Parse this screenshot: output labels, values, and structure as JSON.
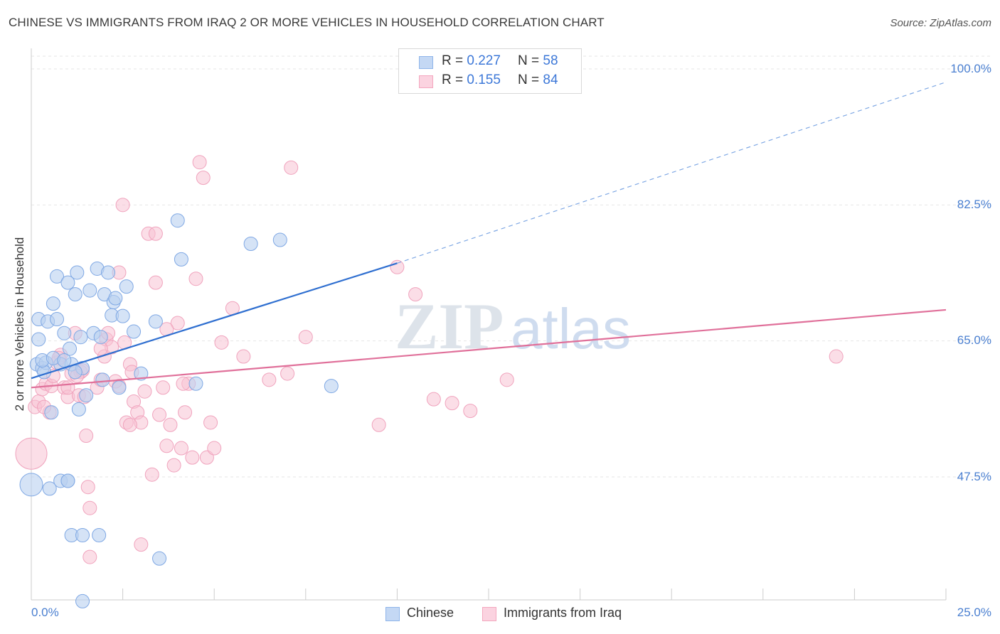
{
  "title": "CHINESE VS IMMIGRANTS FROM IRAQ 2 OR MORE VEHICLES IN HOUSEHOLD CORRELATION CHART",
  "source": "Source: ZipAtlas.com",
  "watermark": {
    "zip": "ZIP",
    "atlas": "atlas"
  },
  "legend_top": [
    {
      "r_label": "R =",
      "r_value": "0.227",
      "n_label": "N =",
      "n_value": "58"
    },
    {
      "r_label": "R =",
      "r_value": "0.155",
      "n_label": "N =",
      "n_value": "84"
    }
  ],
  "chart_data": {
    "type": "scatter",
    "title": "CHINESE VS IMMIGRANTS FROM IRAQ 2 OR MORE VEHICLES IN HOUSEHOLD CORRELATION CHART",
    "xlabel": "",
    "ylabel": "2 or more Vehicles in Household",
    "xlim": [
      0,
      25
    ],
    "ylim": [
      28,
      100
    ],
    "x_tick_labels": [
      "0.0%",
      "25.0%"
    ],
    "y_ticks": [
      47.5,
      65.0,
      82.5,
      100.0
    ],
    "y_tick_labels": [
      "47.5%",
      "65.0%",
      "82.5%",
      "100.0%"
    ],
    "grid": true,
    "colors": {
      "Chinese": "#8fb5ea",
      "Immigrants from Iraq": "#f4a7bf",
      "Chinese_line": "#2f6fd0",
      "Iraq_line": "#e0709a"
    },
    "series": [
      {
        "name": "Chinese",
        "r": 0.227,
        "n": 58,
        "trend": {
          "x0": 0.0,
          "y0": 60.2,
          "x1": 10.0,
          "y1": 75.0,
          "dash_to_x": 25.0,
          "dash_to_y": 98.3
        },
        "points": [
          [
            0.15,
            62.0
          ],
          [
            0.2,
            65.2
          ],
          [
            0.2,
            67.8
          ],
          [
            0.3,
            61.5
          ],
          [
            0.4,
            62.2
          ],
          [
            0.45,
            67.5
          ],
          [
            0.55,
            55.8
          ],
          [
            0.5,
            46.0
          ],
          [
            0.35,
            61.0
          ],
          [
            0.6,
            69.8
          ],
          [
            0.7,
            73.3
          ],
          [
            0.7,
            67.8
          ],
          [
            0.8,
            62.0
          ],
          [
            0.9,
            66.0
          ],
          [
            1.0,
            72.5
          ],
          [
            1.05,
            64.0
          ],
          [
            1.1,
            62.0
          ],
          [
            1.2,
            71.0
          ],
          [
            1.25,
            73.8
          ],
          [
            1.3,
            56.2
          ],
          [
            1.35,
            65.5
          ],
          [
            1.4,
            61.5
          ],
          [
            1.5,
            58.0
          ],
          [
            1.6,
            71.5
          ],
          [
            1.7,
            66.0
          ],
          [
            1.8,
            74.3
          ],
          [
            1.9,
            65.5
          ],
          [
            1.95,
            60.0
          ],
          [
            2.0,
            71.0
          ],
          [
            2.1,
            73.8
          ],
          [
            2.2,
            68.3
          ],
          [
            2.25,
            70.0
          ],
          [
            2.3,
            70.5
          ],
          [
            2.4,
            59.0
          ],
          [
            2.5,
            68.2
          ],
          [
            2.6,
            72.0
          ],
          [
            2.8,
            66.2
          ],
          [
            3.0,
            60.8
          ],
          [
            3.4,
            67.5
          ],
          [
            4.0,
            80.5
          ],
          [
            4.1,
            75.5
          ],
          [
            4.5,
            59.5
          ],
          [
            6.0,
            77.5
          ],
          [
            6.8,
            78.0
          ],
          [
            8.2,
            59.2
          ],
          [
            0.0,
            46.5
          ],
          [
            0.8,
            47.0
          ],
          [
            1.0,
            47.0
          ],
          [
            1.1,
            40.0
          ],
          [
            1.4,
            40.0
          ],
          [
            1.85,
            40.0
          ],
          [
            3.5,
            37.0
          ],
          [
            1.4,
            31.5
          ],
          [
            0.3,
            62.5
          ],
          [
            0.6,
            62.8
          ],
          [
            1.0,
            47.0
          ],
          [
            0.9,
            62.5
          ],
          [
            1.2,
            61.0
          ]
        ]
      },
      {
        "name": "Immigrants from Iraq",
        "r": 0.155,
        "n": 84,
        "trend": {
          "x0": 0.0,
          "y0": 59.0,
          "x1": 25.0,
          "y1": 69.0
        },
        "points": [
          [
            0.0,
            50.5
          ],
          [
            0.1,
            56.5
          ],
          [
            0.2,
            57.2
          ],
          [
            0.3,
            58.8
          ],
          [
            0.4,
            59.5
          ],
          [
            0.5,
            55.8
          ],
          [
            0.55,
            59.2
          ],
          [
            0.6,
            60.5
          ],
          [
            0.7,
            62.2
          ],
          [
            0.8,
            63.2
          ],
          [
            0.9,
            59.0
          ],
          [
            1.0,
            57.8
          ],
          [
            1.1,
            60.8
          ],
          [
            1.2,
            66.0
          ],
          [
            1.3,
            58.0
          ],
          [
            1.35,
            61.0
          ],
          [
            1.4,
            61.2
          ],
          [
            1.45,
            57.8
          ],
          [
            1.5,
            52.8
          ],
          [
            1.55,
            46.2
          ],
          [
            1.6,
            43.5
          ],
          [
            1.6,
            37.2
          ],
          [
            1.8,
            59.0
          ],
          [
            1.9,
            60.0
          ],
          [
            2.0,
            63.0
          ],
          [
            2.05,
            65.2
          ],
          [
            2.1,
            66.0
          ],
          [
            2.2,
            64.2
          ],
          [
            2.3,
            59.8
          ],
          [
            2.4,
            73.8
          ],
          [
            2.5,
            82.5
          ],
          [
            2.55,
            64.8
          ],
          [
            2.6,
            54.5
          ],
          [
            2.7,
            62.0
          ],
          [
            2.8,
            57.2
          ],
          [
            2.9,
            55.8
          ],
          [
            3.0,
            54.5
          ],
          [
            3.1,
            58.5
          ],
          [
            3.2,
            78.8
          ],
          [
            3.3,
            47.8
          ],
          [
            3.4,
            72.5
          ],
          [
            3.5,
            55.5
          ],
          [
            3.6,
            59.0
          ],
          [
            3.7,
            51.5
          ],
          [
            3.8,
            54.2
          ],
          [
            3.9,
            49.0
          ],
          [
            4.0,
            67.3
          ],
          [
            4.1,
            51.2
          ],
          [
            4.2,
            55.8
          ],
          [
            4.3,
            59.5
          ],
          [
            4.4,
            50.0
          ],
          [
            4.5,
            73.0
          ],
          [
            4.6,
            88.0
          ],
          [
            4.7,
            86.0
          ],
          [
            4.8,
            50.0
          ],
          [
            4.9,
            54.5
          ],
          [
            5.0,
            51.2
          ],
          [
            5.2,
            64.8
          ],
          [
            5.5,
            69.2
          ],
          [
            5.8,
            63.0
          ],
          [
            6.5,
            60.0
          ],
          [
            7.0,
            60.8
          ],
          [
            7.1,
            87.3
          ],
          [
            7.5,
            65.5
          ],
          [
            9.5,
            54.2
          ],
          [
            10.0,
            74.5
          ],
          [
            10.5,
            71.0
          ],
          [
            11.0,
            57.5
          ],
          [
            11.5,
            57.0
          ],
          [
            12.0,
            56.0
          ],
          [
            13.0,
            60.0
          ],
          [
            22.0,
            63.0
          ],
          [
            3.0,
            38.8
          ],
          [
            3.4,
            78.8
          ],
          [
            2.7,
            54.2
          ],
          [
            1.0,
            59.0
          ],
          [
            2.4,
            59.2
          ],
          [
            1.9,
            64.0
          ],
          [
            0.35,
            56.5
          ],
          [
            1.25,
            60.5
          ],
          [
            3.7,
            66.5
          ],
          [
            0.75,
            62.8
          ],
          [
            4.15,
            59.5
          ],
          [
            2.75,
            61.0
          ]
        ]
      }
    ]
  },
  "legend_bottom": [
    {
      "label": "Chinese"
    },
    {
      "label": "Immigrants from Iraq"
    }
  ]
}
